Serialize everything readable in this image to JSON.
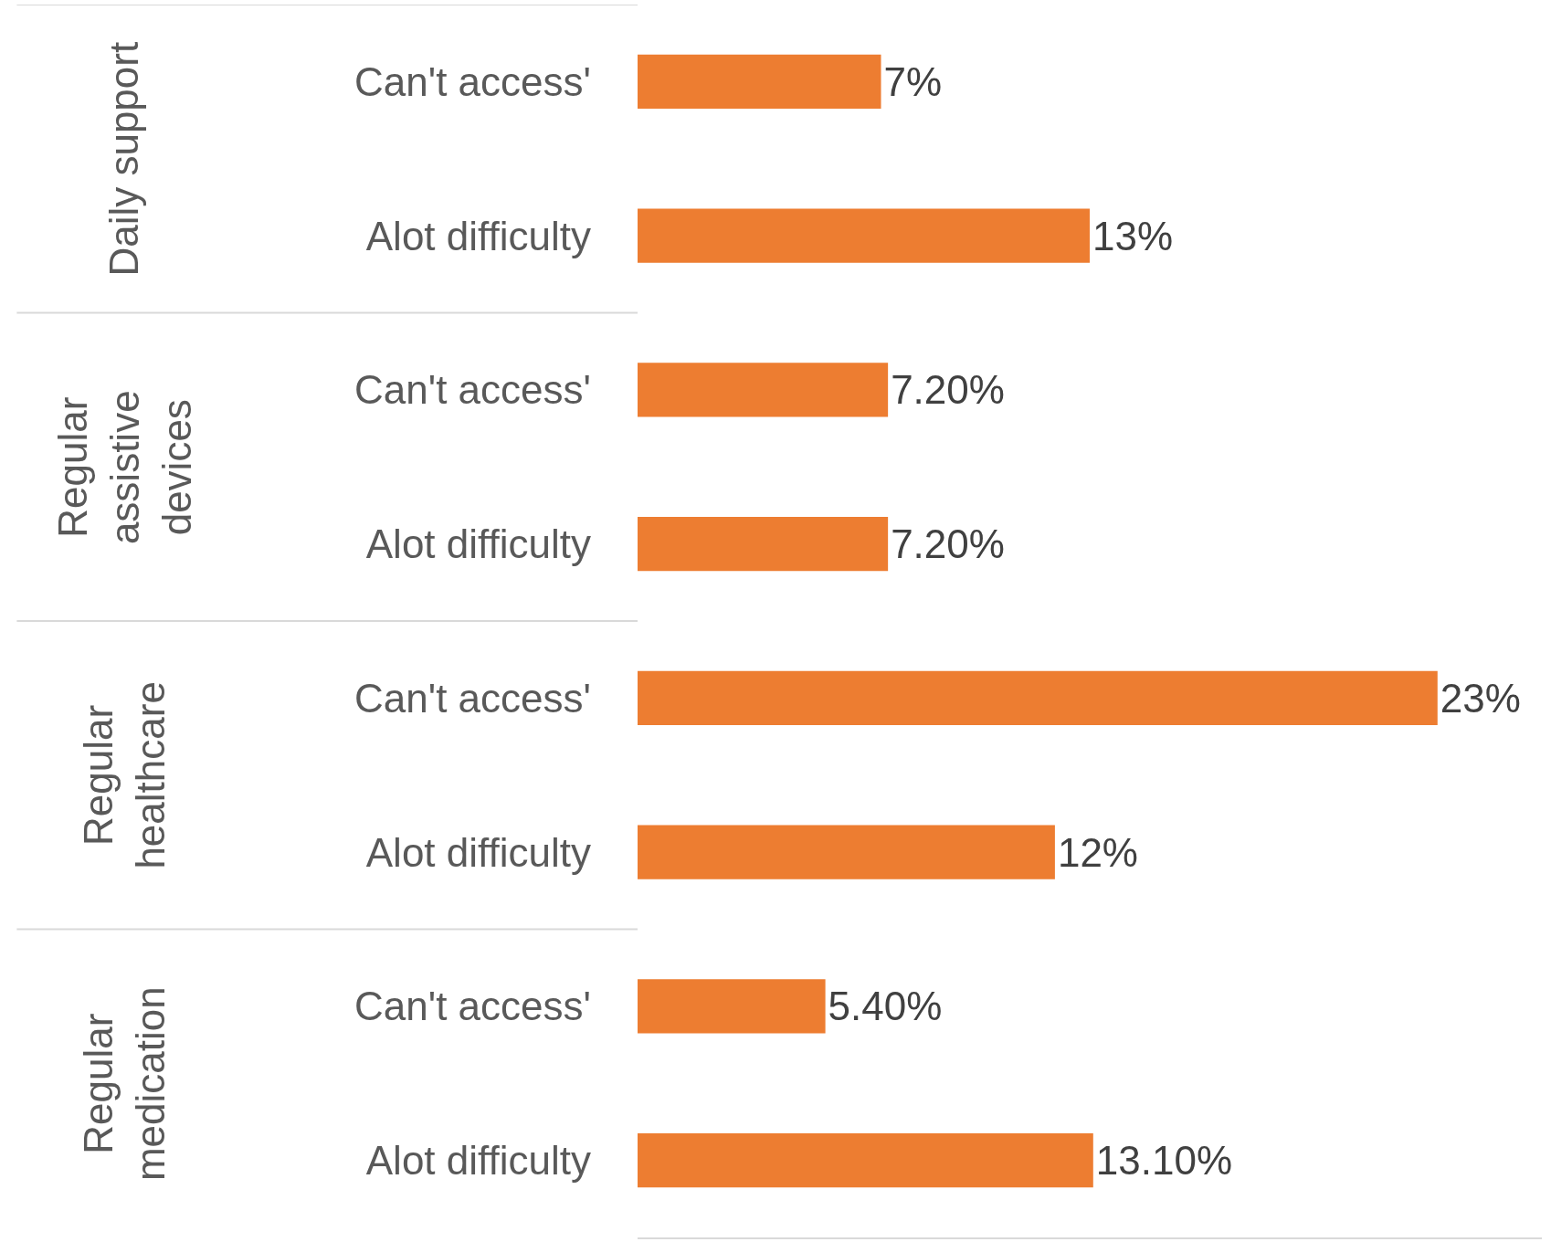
{
  "chart_data": {
    "type": "bar",
    "orientation": "horizontal",
    "categories": [
      "Can't access'",
      "Alot difficulty",
      "Can't access'",
      "Alot difficulty",
      "Can't access'",
      "Alot difficulty",
      "Can't access'",
      "Alot difficulty"
    ],
    "values": [
      7,
      13,
      7.2,
      7.2,
      23,
      12,
      5.4,
      13.1
    ],
    "value_labels": [
      "7%",
      "13%",
      "7.20%",
      "7.20%",
      "23%",
      "12%",
      "5.40%",
      "13.10%"
    ],
    "color": "#ed7d31",
    "xlim": [
      0,
      26
    ],
    "tick_labels": "y",
    "annotations": [
      "Daily support",
      "Regular\nassistive\ndevices",
      "Regular\nhealthcare",
      "Regular\nmedication"
    ]
  }
}
